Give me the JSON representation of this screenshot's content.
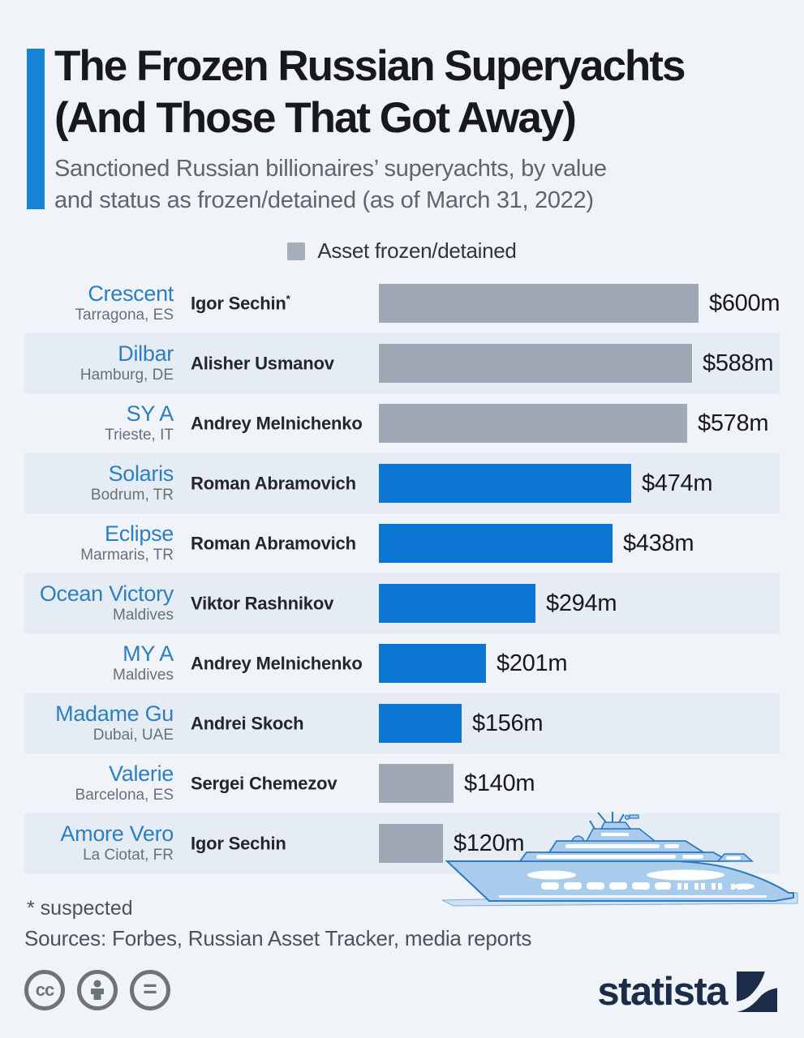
{
  "header": {
    "title": "The Frozen Russian Superyachts\n(And Those That Got Away)",
    "subtitle": "Sanctioned Russian billionaires’ superyachts, by value\nand status as frozen/detained (as of March 31, 2022)"
  },
  "legend": {
    "label": "Asset frozen/detained",
    "swatch_color": "#a6afb9"
  },
  "colors": {
    "accent_bar": "#1583d6",
    "frozen_bar": "#9fa8b4",
    "escaped_bar": "#0c77d2",
    "background": "#f0f4f9",
    "row_stripe": "#e6ecf3",
    "yacht_name_blue": "#2d7fc1",
    "statista_navy": "#1b2d49"
  },
  "chart_data": {
    "type": "bar",
    "orientation": "horizontal",
    "title": "The Frozen Russian Superyachts (And Those That Got Away)",
    "unit": "USD millions",
    "value_axis_max": 600,
    "legend_entries": [
      {
        "label": "Asset frozen/detained",
        "color": "#a6afb9"
      }
    ],
    "rows": [
      {
        "yacht": "Crescent",
        "location": "Tarragona, ES",
        "owner": "Igor Sechin",
        "owner_note": "*",
        "value": 600,
        "value_label": "$600m",
        "status": "frozen"
      },
      {
        "yacht": "Dilbar",
        "location": "Hamburg, DE",
        "owner": "Alisher Usmanov",
        "owner_note": "",
        "value": 588,
        "value_label": "$588m",
        "status": "frozen"
      },
      {
        "yacht": "SY A",
        "location": "Trieste, IT",
        "owner": "Andrey Melnichenko",
        "owner_note": "",
        "value": 578,
        "value_label": "$578m",
        "status": "frozen"
      },
      {
        "yacht": "Solaris",
        "location": "Bodrum, TR",
        "owner": "Roman Abramovich",
        "owner_note": "",
        "value": 474,
        "value_label": "$474m",
        "status": "got_away"
      },
      {
        "yacht": "Eclipse",
        "location": "Marmaris, TR",
        "owner": "Roman Abramovich",
        "owner_note": "",
        "value": 438,
        "value_label": "$438m",
        "status": "got_away"
      },
      {
        "yacht": "Ocean Victory",
        "location": "Maldives",
        "owner": "Viktor Rashnikov",
        "owner_note": "",
        "value": 294,
        "value_label": "$294m",
        "status": "got_away"
      },
      {
        "yacht": "MY A",
        "location": "Maldives",
        "owner": "Andrey Melnichenko",
        "owner_note": "",
        "value": 201,
        "value_label": "$201m",
        "status": "got_away"
      },
      {
        "yacht": "Madame Gu",
        "location": "Dubai, UAE",
        "owner": "Andrei Skoch",
        "owner_note": "",
        "value": 156,
        "value_label": "$156m",
        "status": "got_away"
      },
      {
        "yacht": "Valerie",
        "location": "Barcelona, ES",
        "owner": "Sergei Chemezov",
        "owner_note": "",
        "value": 140,
        "value_label": "$140m",
        "status": "frozen"
      },
      {
        "yacht": "Amore Vero",
        "location": "La Ciotat, FR",
        "owner": "Igor Sechin",
        "owner_note": "",
        "value": 120,
        "value_label": "$120m",
        "status": "frozen"
      }
    ]
  },
  "footer": {
    "footnote": "* suspected",
    "sources": "Sources: Forbes, Russian Asset Tracker, media reports",
    "license_icons": [
      "cc-icon",
      "attribution-person-icon",
      "no-derivatives-equals-icon"
    ],
    "brand": "statista"
  }
}
